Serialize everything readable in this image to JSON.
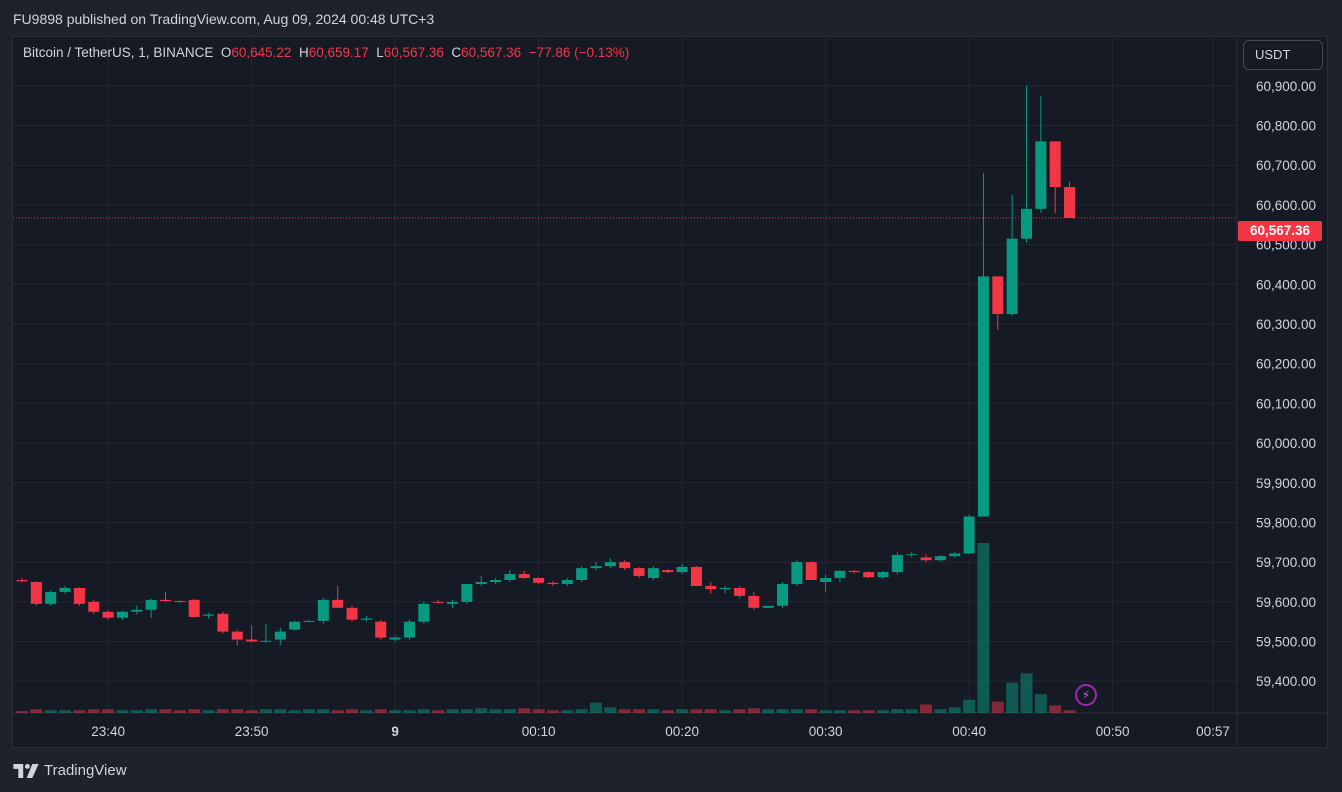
{
  "header": {
    "published": "FU9898 published on TradingView.com, Aug 09, 2024 00:48 UTC+3"
  },
  "legend": {
    "symbol": "Bitcoin / TetherUS, 1, BINANCE",
    "o_label": "O",
    "o_value": "60,645.22",
    "h_label": "H",
    "h_value": "60,659.17",
    "l_label": "L",
    "l_value": "60,567.36",
    "c_label": "C",
    "c_value": "60,567.36",
    "change": "−77.86 (−0.13%)"
  },
  "currency_button": "USDT",
  "last_price": "60,567.36",
  "footer": {
    "brand": "TradingView"
  },
  "colors": {
    "up": "#089981",
    "down": "#f23645",
    "background": "#161a25",
    "grid": "#232733",
    "accent_purple": "#9c27b0"
  },
  "chart_data": {
    "type": "candlestick",
    "symbol": "Bitcoin / TetherUS",
    "interval": "1",
    "exchange": "BINANCE",
    "ylim": [
      59320,
      60960
    ],
    "y_ticks": [
      "60,900.00",
      "60,800.00",
      "60,700.00",
      "60,600.00",
      "60,500.00",
      "60,400.00",
      "60,300.00",
      "60,200.00",
      "60,100.00",
      "60,000.00",
      "59,900.00",
      "59,800.00",
      "59,700.00",
      "59,600.00",
      "59,500.00",
      "59,400.00"
    ],
    "x_tick_labels": [
      {
        "label": "23:40",
        "index": 6
      },
      {
        "label": "23:50",
        "index": 16
      },
      {
        "label": "9",
        "index": 26
      },
      {
        "label": "00:10",
        "index": 36
      },
      {
        "label": "00:20",
        "index": 46
      },
      {
        "label": "00:30",
        "index": 56
      },
      {
        "label": "00:40",
        "index": 66
      },
      {
        "label": "00:50",
        "index": 76
      },
      {
        "label": "00:57",
        "index": 83
      }
    ],
    "last_price": 60567.36,
    "candles": [
      [
        59655,
        59660,
        59648,
        59652,
        2
      ],
      [
        59650,
        59652,
        59590,
        59595,
        4
      ],
      [
        59595,
        59628,
        59590,
        59625,
        3
      ],
      [
        59625,
        59640,
        59620,
        59635,
        3
      ],
      [
        59635,
        59637,
        59590,
        59595,
        3
      ],
      [
        59600,
        59605,
        59570,
        59575,
        4
      ],
      [
        59575,
        59578,
        59555,
        59560,
        4
      ],
      [
        59560,
        59578,
        59555,
        59575,
        3
      ],
      [
        59575,
        59590,
        59568,
        59580,
        3
      ],
      [
        59580,
        59608,
        59560,
        59605,
        4
      ],
      [
        59605,
        59625,
        59600,
        59602,
        4
      ],
      [
        59602,
        59604,
        59598,
        59600,
        3
      ],
      [
        59605,
        59607,
        59560,
        59562,
        4
      ],
      [
        59565,
        59572,
        59558,
        59568,
        3
      ],
      [
        59570,
        59575,
        59520,
        59525,
        4
      ],
      [
        59525,
        59530,
        59490,
        59505,
        4
      ],
      [
        59505,
        59540,
        59498,
        59500,
        3
      ],
      [
        59500,
        59545,
        59497,
        59502,
        4
      ],
      [
        59505,
        59535,
        59490,
        59525,
        4
      ],
      [
        59530,
        59552,
        59528,
        59550,
        3
      ],
      [
        59550,
        59555,
        59548,
        59552,
        4
      ],
      [
        59552,
        59610,
        59545,
        59605,
        4
      ],
      [
        59605,
        59640,
        59590,
        59585,
        3
      ],
      [
        59585,
        59590,
        59550,
        59555,
        4
      ],
      [
        59555,
        59565,
        59550,
        59558,
        3
      ],
      [
        59550,
        59555,
        59505,
        59510,
        4
      ],
      [
        59505,
        59515,
        59500,
        59510,
        3
      ],
      [
        59510,
        59555,
        59505,
        59550,
        3
      ],
      [
        59550,
        59600,
        59545,
        59595,
        4
      ],
      [
        59600,
        59605,
        59595,
        59598,
        3
      ],
      [
        59595,
        59605,
        59585,
        59600,
        4
      ],
      [
        59600,
        59645,
        59595,
        59645,
        4
      ],
      [
        59645,
        59665,
        59640,
        59650,
        5
      ],
      [
        59650,
        59660,
        59645,
        59655,
        4
      ],
      [
        59655,
        59680,
        59650,
        59670,
        4
      ],
      [
        59670,
        59678,
        59658,
        59660,
        5
      ],
      [
        59660,
        59662,
        59645,
        59648,
        4
      ],
      [
        59648,
        59652,
        59640,
        59645,
        3
      ],
      [
        59645,
        59660,
        59640,
        59655,
        3
      ],
      [
        59655,
        59690,
        59650,
        59685,
        4
      ],
      [
        59685,
        59700,
        59680,
        59690,
        11
      ],
      [
        59690,
        59710,
        59685,
        59700,
        6
      ],
      [
        59700,
        59705,
        59680,
        59685,
        4
      ],
      [
        59685,
        59688,
        59660,
        59665,
        4
      ],
      [
        59660,
        59690,
        59655,
        59685,
        4
      ],
      [
        59680,
        59683,
        59672,
        59675,
        3
      ],
      [
        59675,
        59695,
        59670,
        59688,
        4
      ],
      [
        59688,
        59690,
        59640,
        59640,
        4
      ],
      [
        59640,
        59650,
        59620,
        59632,
        4
      ],
      [
        59632,
        59640,
        59622,
        59635,
        3
      ],
      [
        59635,
        59640,
        59610,
        59615,
        4
      ],
      [
        59615,
        59625,
        59580,
        59585,
        5
      ],
      [
        59585,
        59590,
        59585,
        59590,
        4
      ],
      [
        59590,
        59650,
        59585,
        59645,
        4
      ],
      [
        59645,
        59705,
        59640,
        59700,
        4
      ],
      [
        59700,
        59702,
        59655,
        59655,
        4
      ],
      [
        59650,
        59668,
        59625,
        59660,
        3
      ],
      [
        59660,
        59680,
        59650,
        59678,
        3
      ],
      [
        59678,
        59680,
        59672,
        59675,
        3
      ],
      [
        59675,
        59678,
        59660,
        59662,
        3
      ],
      [
        59662,
        59678,
        59658,
        59675,
        3
      ],
      [
        59675,
        59725,
        59670,
        59718,
        4
      ],
      [
        59718,
        59725,
        59712,
        59720,
        4
      ],
      [
        59712,
        59720,
        59700,
        59705,
        9
      ],
      [
        59705,
        59718,
        59702,
        59715,
        4
      ],
      [
        59715,
        59725,
        59712,
        59722,
        6
      ],
      [
        59722,
        59820,
        59720,
        59815,
        14
      ],
      [
        59815,
        60680,
        59815,
        60420,
        180
      ],
      [
        60420,
        60420,
        60285,
        60325,
        12
      ],
      [
        60325,
        60625,
        60320,
        60515,
        32
      ],
      [
        60515,
        60900,
        60505,
        60590,
        42
      ],
      [
        60590,
        60875,
        60580,
        60760,
        20
      ],
      [
        60760,
        60760,
        60580,
        60645,
        8
      ],
      [
        60645,
        60659,
        60567,
        60567,
        3
      ]
    ]
  }
}
